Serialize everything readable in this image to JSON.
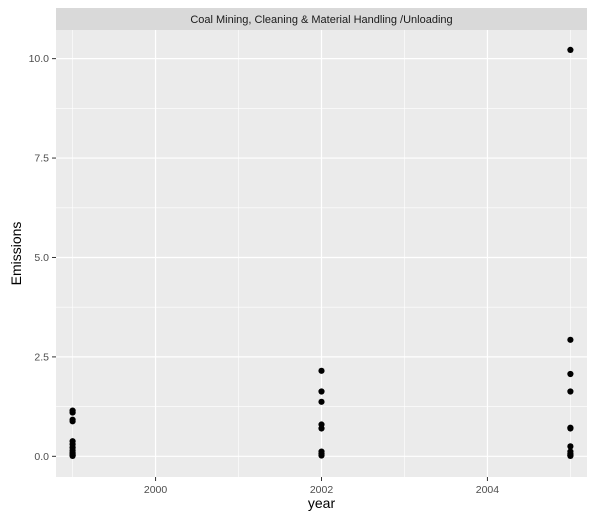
{
  "chart_data": {
    "type": "scatter",
    "facet_title": "Coal Mining, Cleaning & Material Handling /Unloading",
    "xlabel": "year",
    "ylabel": "Emissions",
    "xlim": [
      1998.8,
      2005.2
    ],
    "ylim": [
      -0.52,
      10.72
    ],
    "x_ticks": [
      2000,
      2002,
      2004
    ],
    "x_tick_labels": [
      "2000",
      "2002",
      "2004"
    ],
    "x_minor_ticks": [
      1999,
      2001,
      2003,
      2005
    ],
    "y_ticks": [
      0.0,
      2.5,
      5.0,
      7.5,
      10.0
    ],
    "y_tick_labels": [
      "0.0",
      "2.5",
      "5.0",
      "7.5",
      "10.0"
    ],
    "y_minor_ticks": [
      1.25,
      3.75,
      6.25,
      8.75
    ],
    "grid": true,
    "colors": {
      "panel": "#ebebeb",
      "grid": "#ffffff",
      "strip": "#d9d9d9",
      "point": "#000000"
    },
    "series": [
      {
        "points": [
          [
            1999,
            1.15
          ],
          [
            1999,
            1.1
          ],
          [
            1999,
            0.92
          ],
          [
            1999,
            0.88
          ],
          [
            1999,
            0.38
          ],
          [
            1999,
            0.3
          ],
          [
            1999,
            0.22
          ],
          [
            1999,
            0.15
          ],
          [
            1999,
            0.1
          ],
          [
            1999,
            0.06
          ],
          [
            1999,
            0.03
          ],
          [
            1999,
            0.01
          ],
          [
            2002,
            2.15
          ],
          [
            2002,
            1.63
          ],
          [
            2002,
            1.37
          ],
          [
            2002,
            0.8
          ],
          [
            2002,
            0.7
          ],
          [
            2002,
            0.12
          ],
          [
            2002,
            0.06
          ],
          [
            2002,
            0.02
          ],
          [
            2005,
            10.22
          ],
          [
            2005,
            2.93
          ],
          [
            2005,
            2.07
          ],
          [
            2005,
            1.63
          ],
          [
            2005,
            0.72
          ],
          [
            2005,
            0.7
          ],
          [
            2005,
            0.25
          ],
          [
            2005,
            0.12
          ],
          [
            2005,
            0.06
          ],
          [
            2005,
            0.03
          ],
          [
            2005,
            0.01
          ]
        ]
      }
    ]
  }
}
